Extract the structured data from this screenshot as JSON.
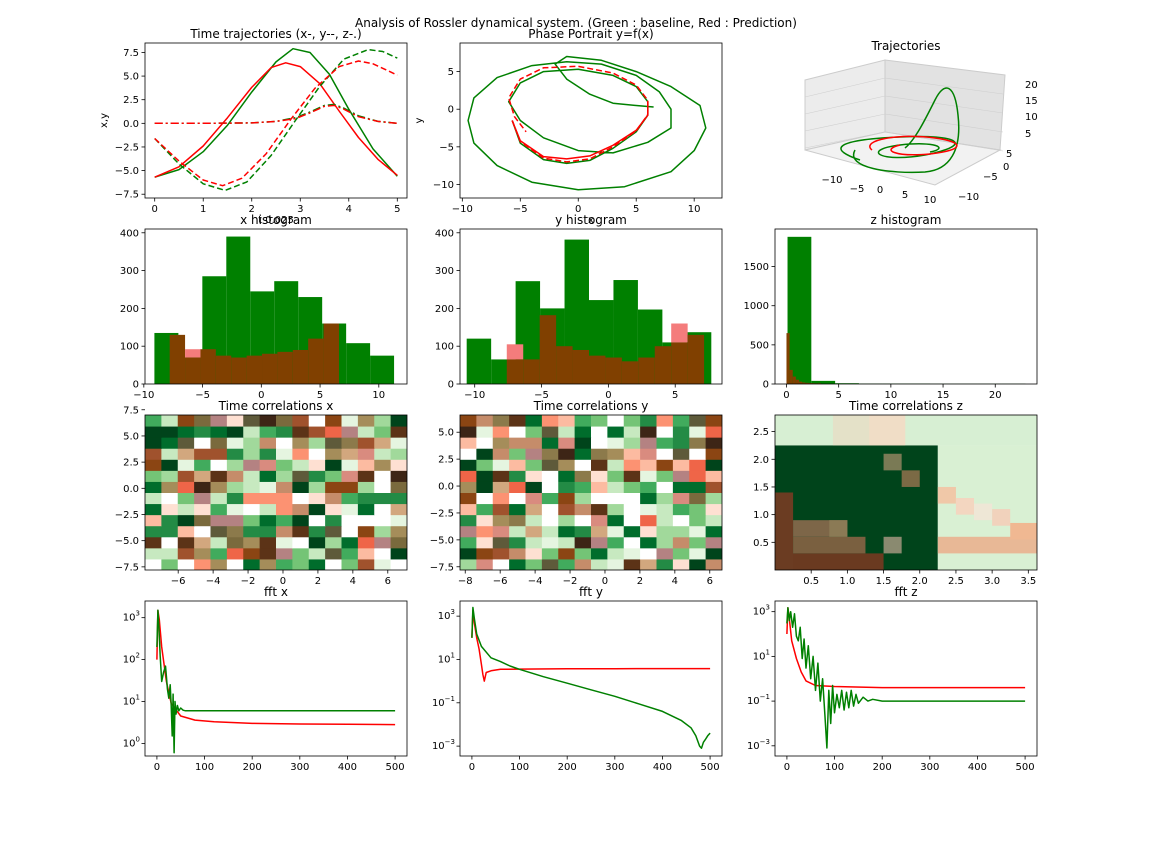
{
  "figure": {
    "suptitle": "Analysis of Rossler dynamical system. (Green : baseline, Red : Prediction)"
  },
  "colors": {
    "baseline": "#008000",
    "prediction": "#ff0000",
    "overlap": "#804000"
  },
  "chart_data": [
    {
      "id": "traj",
      "type": "line",
      "title": "Time trajectories (x-, y--, z-.)",
      "xlabel": "t 0.025",
      "ylabel": "x,y",
      "xlim": [
        -0.2,
        5.2
      ],
      "ylim": [
        -7.9,
        8.5
      ],
      "xticks": [
        0,
        1,
        2,
        3,
        4,
        5
      ],
      "yticks": [
        -7.5,
        -5.0,
        -2.5,
        0.0,
        2.5,
        5.0,
        7.5
      ],
      "series": [
        {
          "color": "baseline",
          "dash": "",
          "x": [
            0,
            0.5,
            1,
            1.5,
            2,
            2.5,
            2.85,
            3.2,
            3.6,
            4,
            4.5,
            5
          ],
          "y": [
            -5.7,
            -4.9,
            -3.0,
            -0.2,
            3.3,
            6.5,
            7.9,
            7.5,
            5.2,
            1.5,
            -2.7,
            -5.6
          ]
        },
        {
          "color": "prediction",
          "dash": "",
          "x": [
            0,
            0.5,
            1,
            1.5,
            2,
            2.4,
            2.7,
            3,
            3.4,
            3.8,
            4.2,
            4.6,
            5
          ],
          "y": [
            -5.7,
            -4.6,
            -2.4,
            0.6,
            3.8,
            5.9,
            6.4,
            6.0,
            4.2,
            1.3,
            -1.5,
            -3.8,
            -5.5
          ]
        },
        {
          "color": "baseline",
          "dash": "6,3",
          "x": [
            0,
            0.5,
            1,
            1.45,
            1.9,
            2.4,
            2.9,
            3.4,
            3.9,
            4.4,
            4.7,
            5
          ],
          "y": [
            -1.6,
            -4.3,
            -6.4,
            -7.1,
            -6.2,
            -3.4,
            0.3,
            3.9,
            6.8,
            7.8,
            7.6,
            6.9
          ]
        },
        {
          "color": "prediction",
          "dash": "6,3",
          "x": [
            0,
            0.5,
            1,
            1.4,
            1.8,
            2.3,
            2.8,
            3.3,
            3.8,
            4.2,
            4.5,
            5
          ],
          "y": [
            -1.6,
            -4.0,
            -6.0,
            -6.6,
            -5.8,
            -3.2,
            0.4,
            3.7,
            6.0,
            6.6,
            6.3,
            5.1
          ]
        },
        {
          "color": "baseline",
          "dash": "8,3,2,3",
          "x": [
            0,
            1,
            2,
            2.5,
            2.9,
            3.2,
            3.5,
            3.7,
            3.9,
            4.2,
            4.6,
            5
          ],
          "y": [
            0,
            0,
            0.05,
            0.2,
            0.6,
            1.2,
            1.9,
            2.0,
            1.6,
            0.8,
            0.2,
            0
          ]
        },
        {
          "color": "prediction",
          "dash": "8,3,2,3",
          "x": [
            0,
            1,
            2,
            2.5,
            2.9,
            3.2,
            3.5,
            3.7,
            3.9,
            4.2,
            4.6,
            5
          ],
          "y": [
            0,
            0,
            0.05,
            0.2,
            0.5,
            1.1,
            1.8,
            1.9,
            1.5,
            0.7,
            0.2,
            0
          ]
        }
      ]
    },
    {
      "id": "phase",
      "type": "line",
      "title": "Phase Portrait y=f(x)",
      "xlabel": "x",
      "ylabel": "y",
      "xlim": [
        -10.2,
        12.4
      ],
      "ylim": [
        -11.8,
        8.8
      ],
      "xticks": [
        -10,
        -5,
        0,
        5,
        10
      ],
      "yticks": [
        -10,
        -5,
        0,
        5
      ],
      "series": [
        {
          "color": "baseline",
          "dash": "",
          "x": [
            -5.7,
            -5,
            -3,
            -1,
            1,
            3,
            5,
            6,
            6,
            5,
            3,
            0,
            -3,
            -5,
            -6,
            -5,
            -3,
            0,
            3,
            6,
            8,
            8,
            7,
            5,
            2,
            -1,
            -4,
            -7,
            -9,
            -9.5,
            -9,
            -7,
            -4,
            0,
            4,
            8,
            10,
            11,
            10.5,
            8,
            5,
            2,
            -1,
            -2,
            -1,
            1,
            3,
            5,
            6.5
          ],
          "y": [
            -1.5,
            -4.5,
            -6.7,
            -7.2,
            -6.8,
            -5.2,
            -3,
            -0.8,
            1,
            3,
            4.5,
            5.3,
            5,
            3.5,
            1,
            -1.5,
            -3.8,
            -5.5,
            -5.8,
            -4.4,
            -2.5,
            0,
            2.3,
            4.5,
            6,
            6.3,
            5.8,
            4.2,
            1.5,
            -1.5,
            -4.5,
            -7.5,
            -9.7,
            -10.7,
            -10.3,
            -8.3,
            -5.5,
            -2.5,
            0.5,
            3,
            5,
            6.5,
            7,
            6,
            4,
            2,
            0.8,
            0.5,
            0.3
          ]
        },
        {
          "color": "prediction",
          "dash": "",
          "x": [
            -5.7,
            -5,
            -3,
            -1,
            1,
            3,
            5,
            6,
            6
          ],
          "y": [
            -1.5,
            -4.2,
            -6.3,
            -6.6,
            -6.2,
            -4.8,
            -2.8,
            -0.8,
            1
          ]
        },
        {
          "color": "prediction",
          "dash": "6,3",
          "x": [
            -5.7,
            -5,
            -3,
            -1,
            1,
            3,
            5,
            6,
            6,
            5,
            3,
            0,
            -3,
            -5,
            -6,
            -5.5,
            -4.5
          ],
          "y": [
            -1.5,
            -4.3,
            -6.5,
            -7,
            -6.6,
            -5,
            -2.9,
            -0.7,
            1.2,
            3.2,
            4.8,
            5.7,
            5.5,
            4,
            1.5,
            -1,
            -3
          ]
        }
      ]
    },
    {
      "id": "traj3d",
      "type": "line",
      "title": "Trajectories",
      "xticks": [
        "−10",
        "−5",
        "0",
        "5",
        "10"
      ],
      "yticks": [
        "−10",
        "−5",
        "0",
        "5"
      ],
      "zticks": [
        "5",
        "10",
        "15",
        "20"
      ]
    },
    {
      "id": "xhist",
      "type": "bar",
      "title": "x histogram",
      "xlim": [
        -9.9,
        12.4
      ],
      "ylim": [
        0,
        410
      ],
      "xticks": [
        -10,
        -5,
        0,
        5,
        10
      ],
      "yticks": [
        0,
        100,
        200,
        300,
        400
      ],
      "series": [
        {
          "color": "baseline",
          "edges": [
            -9.1,
            -7.06,
            -5.02,
            -2.98,
            -0.94,
            1.1,
            3.14,
            5.18,
            7.22,
            9.26,
            11.3
          ],
          "values": [
            135,
            70,
            285,
            390,
            245,
            272,
            230,
            160,
            108,
            75
          ]
        },
        {
          "color": "prediction",
          "edges": [
            -7.8,
            -6.49,
            -5.18,
            -3.87,
            -2.56,
            -1.25,
            0.06,
            1.37,
            2.68,
            3.99,
            5.3,
            6.61,
            7.3
          ],
          "values": [
            130,
            92,
            92,
            75,
            70,
            75,
            80,
            85,
            90,
            120,
            160,
            0
          ]
        }
      ]
    },
    {
      "id": "yhist",
      "type": "bar",
      "title": "y histogram",
      "xlim": [
        -11.1,
        8.5
      ],
      "ylim": [
        0,
        410
      ],
      "xticks": [
        -10,
        -5,
        0,
        5
      ],
      "yticks": [
        0,
        100,
        200,
        300,
        400
      ],
      "series": [
        {
          "color": "baseline",
          "edges": [
            -10.6,
            -8.77,
            -6.94,
            -5.11,
            -3.28,
            -1.45,
            0.38,
            2.21,
            4.04,
            5.87,
            7.7
          ],
          "values": [
            120,
            65,
            272,
            200,
            382,
            222,
            275,
            197,
            110,
            137
          ]
        },
        {
          "color": "prediction",
          "edges": [
            -7.6,
            -6.37,
            -5.14,
            -3.91,
            -2.68,
            -1.45,
            -0.22,
            1.01,
            2.24,
            3.47,
            4.7,
            5.93,
            7.16
          ],
          "values": [
            105,
            65,
            182,
            100,
            90,
            75,
            70,
            60,
            70,
            100,
            160,
            130
          ]
        }
      ]
    },
    {
      "id": "zhist",
      "type": "bar",
      "title": "z histogram",
      "xlim": [
        -1.1,
        24.0
      ],
      "ylim": [
        0,
        1980
      ],
      "xticks": [
        0,
        5,
        10,
        15,
        20
      ],
      "yticks": [
        0,
        500,
        1000,
        1500
      ],
      "series": [
        {
          "color": "baseline",
          "edges": [
            0.1,
            2.38,
            4.66,
            6.94,
            9.22,
            11.5,
            13.78,
            16.06,
            18.34,
            20.62,
            22.9
          ],
          "values": [
            1880,
            40,
            10,
            5,
            5,
            5,
            3,
            3,
            3,
            3
          ]
        },
        {
          "color": "prediction",
          "edges": [
            0.0,
            0.3,
            0.6,
            0.9,
            1.2,
            1.5,
            1.8,
            2.1,
            2.4,
            2.7,
            3.0,
            3.3
          ],
          "values": [
            650,
            180,
            95,
            55,
            30,
            20,
            15,
            12,
            10,
            8,
            10
          ]
        }
      ]
    },
    {
      "id": "corrx",
      "type": "heatmap",
      "title": "Time correlations x",
      "xlim": [
        -7.9,
        7.1
      ],
      "ylim": [
        -7.8,
        7.0
      ],
      "xticks": [
        -6,
        -4,
        -2,
        0,
        2,
        4,
        6
      ],
      "yticks": [
        -7.5,
        -5.0,
        -2.5,
        0.0,
        2.5,
        5.0,
        7.5
      ]
    },
    {
      "id": "corry",
      "type": "heatmap",
      "title": "Time correlations y",
      "xlim": [
        -8.3,
        6.7
      ],
      "ylim": [
        -7.8,
        6.6
      ],
      "xticks": [
        -8,
        -6,
        -4,
        -2,
        0,
        2,
        4,
        6
      ],
      "yticks": [
        -7.5,
        -5.0,
        -2.5,
        0.0,
        2.5,
        5.0
      ]
    },
    {
      "id": "corrz",
      "type": "heatmap",
      "title": "Time correlations z",
      "xlim": [
        0,
        3.62
      ],
      "ylim": [
        0,
        2.8
      ],
      "xticks": [
        0.5,
        1.0,
        1.5,
        2.0,
        2.5,
        3.0,
        3.5
      ],
      "yticks": [
        0.5,
        1.0,
        1.5,
        2.0,
        2.5
      ]
    },
    {
      "id": "fftx",
      "type": "line",
      "title": "fft x",
      "log": true,
      "xlim": [
        -25,
        525
      ],
      "ylim": [
        0.5,
        2500
      ],
      "xticks": [
        0,
        100,
        200,
        300,
        400,
        500
      ],
      "ytickexp": [
        0,
        1,
        2,
        3
      ],
      "series": [
        {
          "color": "prediction",
          "dash": "",
          "x": [
            0,
            2,
            5,
            10,
            20,
            30,
            50,
            80,
            120,
            200,
            300,
            400,
            500
          ],
          "y": [
            100,
            1500,
            900,
            200,
            30,
            9,
            4.5,
            3.6,
            3.3,
            3.0,
            2.9,
            2.85,
            2.8
          ]
        },
        {
          "color": "baseline",
          "dash": "",
          "x": [
            0,
            2,
            4,
            7,
            10,
            14,
            18,
            20,
            22,
            25,
            28,
            30,
            32,
            34,
            36,
            38,
            40,
            43,
            46,
            50,
            55,
            60,
            80,
            100,
            200,
            300,
            400,
            500
          ],
          "y": [
            200,
            1500,
            700,
            120,
            30,
            50,
            70,
            40,
            20,
            12,
            25,
            8,
            1.5,
            15,
            0.6,
            10,
            5,
            8,
            6,
            7,
            6.2,
            6,
            6,
            6,
            6,
            6,
            6,
            6
          ]
        }
      ]
    },
    {
      "id": "ffty",
      "type": "line",
      "title": "fft y",
      "log": true,
      "xlim": [
        -25,
        525
      ],
      "ylim": [
        0.00035,
        5000
      ],
      "xticks": [
        0,
        100,
        200,
        300,
        400,
        500
      ],
      "ytickexp": [
        -3,
        -1,
        1,
        3
      ],
      "series": [
        {
          "color": "prediction",
          "dash": "",
          "x": [
            0,
            2,
            5,
            10,
            15,
            20,
            23,
            26,
            30,
            40,
            60,
            100,
            200,
            300,
            400,
            500
          ],
          "y": [
            100,
            1800,
            500,
            100,
            30,
            6,
            2,
            1,
            2.5,
            3,
            3.5,
            3.6,
            3.7,
            3.75,
            3.8,
            3.8
          ]
        },
        {
          "color": "baseline",
          "dash": "",
          "x": [
            0,
            2,
            5,
            10,
            20,
            40,
            60,
            80,
            100,
            150,
            200,
            250,
            300,
            350,
            400,
            440,
            460,
            470,
            478,
            482,
            486,
            490,
            495,
            500
          ],
          "y": [
            100,
            2500,
            800,
            150,
            40,
            12,
            8,
            5,
            3.5,
            1.6,
            0.8,
            0.4,
            0.2,
            0.09,
            0.04,
            0.015,
            0.007,
            0.003,
            0.001,
            0.0008,
            0.0015,
            0.002,
            0.003,
            0.004
          ]
        }
      ]
    },
    {
      "id": "fftz",
      "type": "line",
      "title": "fft z",
      "log": true,
      "xlim": [
        -25,
        525
      ],
      "ylim": [
        0.00035,
        3000
      ],
      "xticks": [
        0,
        100,
        200,
        300,
        400,
        500
      ],
      "ytickexp": [
        -3,
        -1,
        1,
        3
      ],
      "series": [
        {
          "color": "prediction",
          "dash": "",
          "x": [
            0,
            2,
            5,
            10,
            20,
            30,
            40,
            60,
            100,
            200,
            300,
            400,
            500
          ],
          "y": [
            100,
            1500,
            500,
            50,
            8,
            2,
            0.8,
            0.5,
            0.45,
            0.4,
            0.4,
            0.4,
            0.4
          ]
        },
        {
          "color": "baseline",
          "dash": "",
          "x": [
            0,
            2,
            5,
            8,
            12,
            16,
            20,
            24,
            28,
            32,
            36,
            40,
            45,
            50,
            55,
            60,
            65,
            70,
            75,
            80,
            84,
            88,
            92,
            96,
            100,
            105,
            110,
            115,
            120,
            125,
            130,
            135,
            140,
            145,
            150,
            160,
            170,
            180,
            200,
            250,
            300,
            400,
            500
          ],
          "y": [
            300,
            1500,
            400,
            1000,
            200,
            800,
            80,
            50,
            200,
            8,
            60,
            3,
            30,
            1,
            10,
            0.3,
            5,
            0.1,
            1,
            0.02,
            0.0008,
            0.3,
            0.01,
            0.5,
            0.03,
            0.2,
            0.05,
            0.3,
            0.04,
            0.25,
            0.05,
            0.3,
            0.06,
            0.2,
            0.08,
            0.15,
            0.1,
            0.12,
            0.1,
            0.1,
            0.1,
            0.1,
            0.1
          ]
        }
      ]
    }
  ]
}
